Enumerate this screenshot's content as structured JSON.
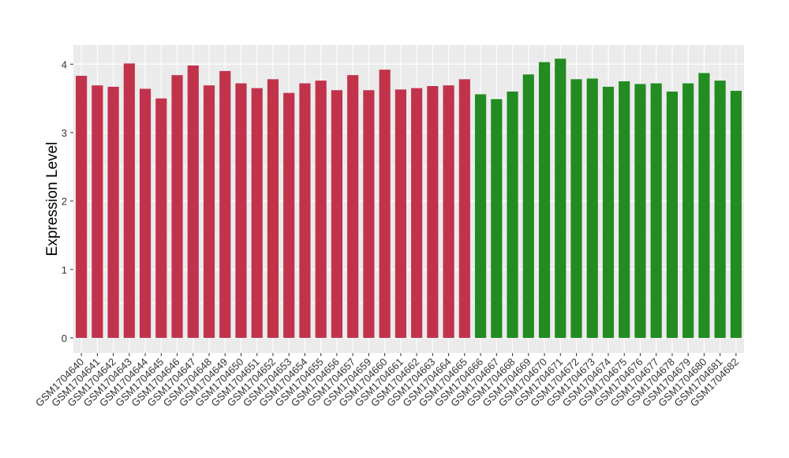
{
  "chart_data": {
    "type": "bar",
    "y_label": "Expression Level",
    "categories": [
      "GSM1704640",
      "GSM1704641",
      "GSM1704642",
      "GSM1704643",
      "GSM1704644",
      "GSM1704645",
      "GSM1704646",
      "GSM1704647",
      "GSM1704648",
      "GSM1704649",
      "GSM1704650",
      "GSM1704651",
      "GSM1704652",
      "GSM1704653",
      "GSM1704654",
      "GSM1704655",
      "GSM1704656",
      "GSM1704657",
      "GSM1704659",
      "GSM1704660",
      "GSM1704661",
      "GSM1704662",
      "GSM1704663",
      "GSM1704664",
      "GSM1704665",
      "GSM1704666",
      "GSM1704667",
      "GSM1704668",
      "GSM1704669",
      "GSM1704670",
      "GSM1704671",
      "GSM1704672",
      "GSM1704673",
      "GSM1704674",
      "GSM1704675",
      "GSM1704676",
      "GSM1704677",
      "GSM1704678",
      "GSM1704679",
      "GSM1704680",
      "GSM1704681",
      "GSM1704682"
    ],
    "values": [
      3.83,
      3.69,
      3.67,
      4.01,
      3.64,
      3.5,
      3.84,
      3.98,
      3.69,
      3.9,
      3.72,
      3.65,
      3.78,
      3.58,
      3.72,
      3.76,
      3.62,
      3.84,
      3.62,
      3.92,
      3.63,
      3.65,
      3.68,
      3.69,
      3.78,
      3.56,
      3.49,
      3.6,
      3.85,
      4.03,
      4.08,
      3.78,
      3.79,
      3.67,
      3.75,
      3.71,
      3.72,
      3.6,
      3.72,
      3.87,
      3.76,
      3.61
    ],
    "colors": [
      "#c1334b",
      "#c1334b",
      "#c1334b",
      "#c1334b",
      "#c1334b",
      "#c1334b",
      "#c1334b",
      "#c1334b",
      "#c1334b",
      "#c1334b",
      "#c1334b",
      "#c1334b",
      "#c1334b",
      "#c1334b",
      "#c1334b",
      "#c1334b",
      "#c1334b",
      "#c1334b",
      "#c1334b",
      "#c1334b",
      "#c1334b",
      "#c1334b",
      "#c1334b",
      "#c1334b",
      "#c1334b",
      "#228b22",
      "#228b22",
      "#228b22",
      "#228b22",
      "#228b22",
      "#228b22",
      "#228b22",
      "#228b22",
      "#228b22",
      "#228b22",
      "#228b22",
      "#228b22",
      "#228b22",
      "#228b22",
      "#228b22",
      "#228b22",
      "#228b22"
    ],
    "ylim": [
      -0.22,
      4.28
    ],
    "yticks": [
      0,
      1,
      2,
      3,
      4
    ],
    "grid": true
  }
}
